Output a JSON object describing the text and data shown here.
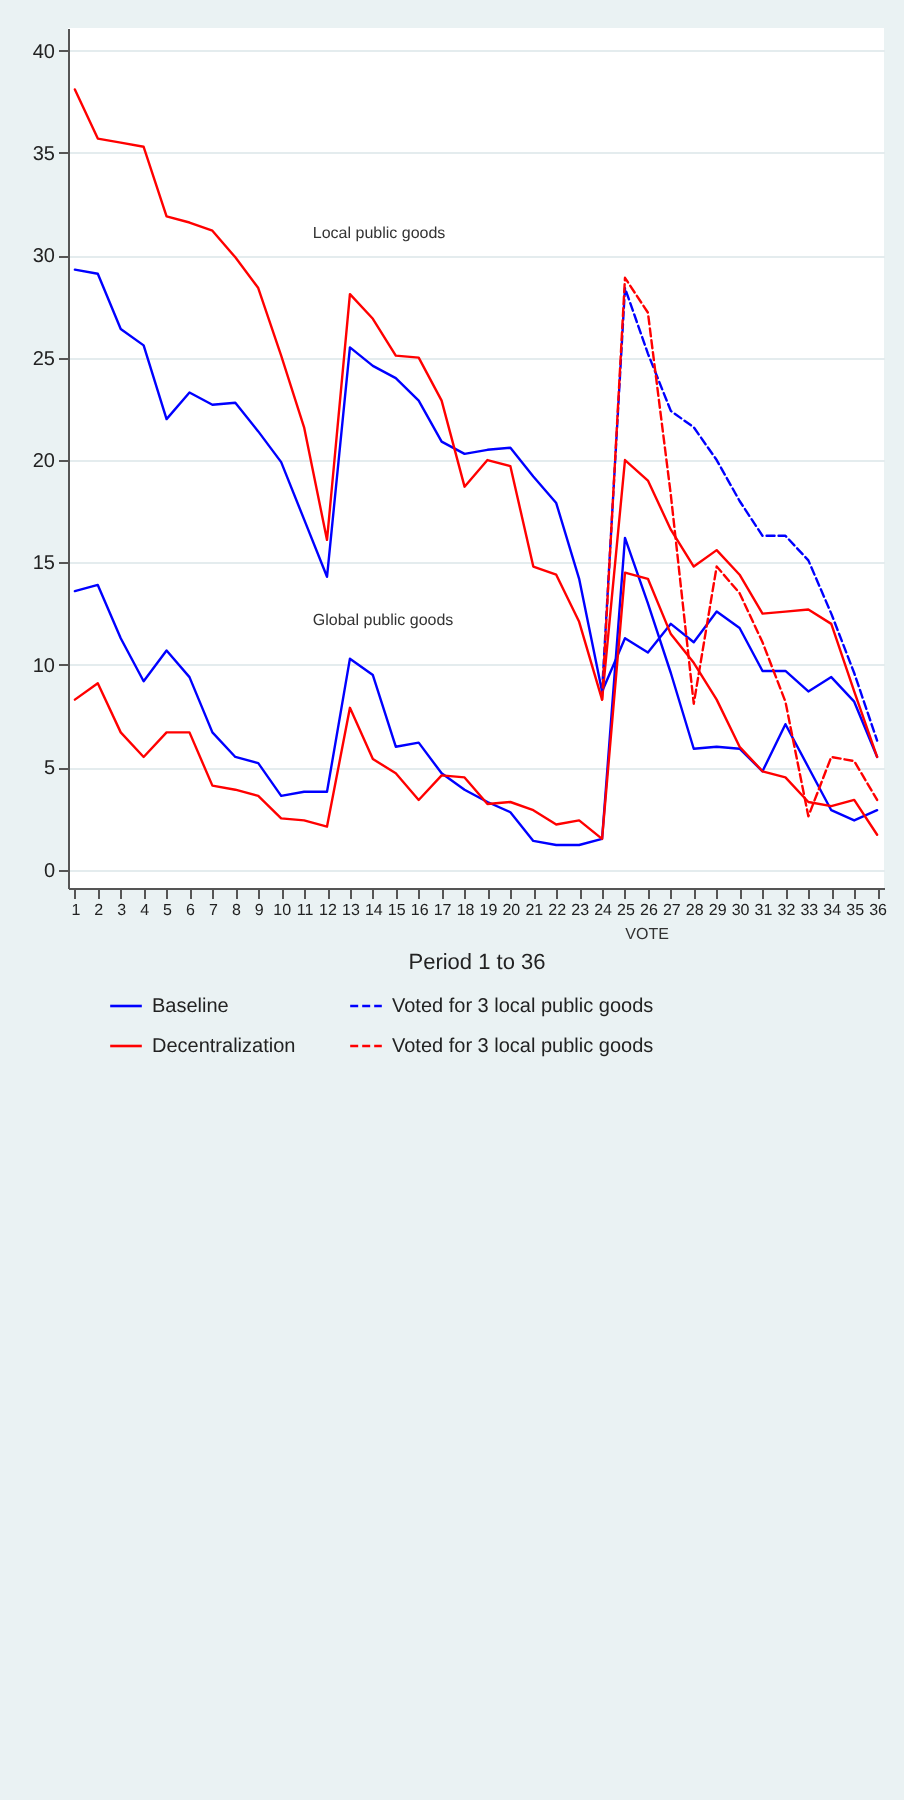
{
  "chart_data": {
    "type": "line",
    "xlabel": "Period 1 to 36",
    "x": [
      1,
      2,
      3,
      4,
      5,
      6,
      7,
      8,
      9,
      10,
      11,
      12,
      13,
      14,
      15,
      16,
      17,
      18,
      19,
      20,
      21,
      22,
      23,
      24,
      25,
      26,
      27,
      28,
      29,
      30,
      31,
      32,
      33,
      34,
      35,
      36
    ],
    "series": [
      {
        "name": "Baseline",
        "color": "#0000ff",
        "line_style": "solid",
        "values": [
          29.3,
          29.1,
          26.4,
          25.6,
          22.0,
          23.3,
          22.7,
          22.8,
          21.4,
          19.9,
          17.1,
          14.3,
          25.5,
          24.6,
          24.0,
          22.9,
          20.9,
          20.3,
          20.5,
          20.6,
          19.2,
          17.9,
          14.2,
          8.7,
          11.3,
          10.6,
          12.0,
          11.1,
          12.6,
          11.8,
          9.7,
          9.7,
          8.7,
          9.4,
          8.2,
          5.5
        ]
      },
      {
        "name": "Decentralization",
        "color": "#ff0000",
        "line_style": "solid",
        "values": [
          38.1,
          35.7,
          35.5,
          35.3,
          31.9,
          31.6,
          31.2,
          29.9,
          28.4,
          25.1,
          21.6,
          16.1,
          28.1,
          26.9,
          25.1,
          25.0,
          22.9,
          18.7,
          20.0,
          19.7,
          14.8,
          14.4,
          12.1,
          8.3,
          20.0,
          19.0,
          16.6,
          14.8,
          15.6,
          14.4,
          12.5,
          12.6,
          12.7,
          12.0,
          8.7,
          5.5
        ]
      },
      {
        "color": "#0000ff",
        "line_style": "solid",
        "values": [
          13.6,
          13.9,
          11.3,
          9.2,
          10.7,
          9.4,
          6.7,
          5.5,
          5.2,
          3.6,
          3.8,
          3.8,
          10.3,
          9.5,
          6.0,
          6.2,
          4.7,
          3.9,
          3.3,
          2.8,
          1.4,
          1.2,
          1.2,
          1.5,
          16.2,
          13.0,
          9.6,
          5.9,
          6.0,
          5.9,
          4.8,
          7.1,
          5.0,
          2.9,
          2.4,
          2.9
        ]
      },
      {
        "color": "#ff0000",
        "line_style": "solid",
        "values": [
          8.3,
          9.1,
          6.7,
          5.5,
          6.7,
          6.7,
          4.1,
          3.9,
          3.6,
          2.5,
          2.4,
          2.1,
          7.9,
          5.4,
          4.7,
          3.4,
          4.6,
          4.5,
          3.2,
          3.3,
          2.9,
          2.2,
          2.4,
          1.5,
          14.5,
          14.2,
          11.5,
          10.1,
          8.3,
          6.0,
          4.8,
          4.5,
          3.3,
          3.1,
          3.4,
          1.7
        ]
      },
      {
        "name": "Voted for 3 local public goods",
        "color": "#0000ff",
        "line_style": "dashed",
        "x": [
          24,
          25,
          26,
          27,
          28,
          29,
          30,
          31,
          32,
          33,
          34,
          35,
          36
        ],
        "values": [
          8.7,
          28.4,
          25.2,
          22.4,
          21.6,
          20.0,
          18.0,
          16.3,
          16.3,
          15.1,
          12.5,
          9.6,
          6.3
        ]
      },
      {
        "name": "Voted for 3 local public goods",
        "color": "#ff0000",
        "line_style": "dashed",
        "x": [
          24,
          25,
          26,
          27,
          28,
          29,
          30,
          31,
          32,
          33,
          34,
          35,
          36
        ],
        "values": [
          8.3,
          28.9,
          27.2,
          18.3,
          8.1,
          14.8,
          13.5,
          11.1,
          8.2,
          2.6,
          5.5,
          5.3,
          3.4
        ]
      }
    ],
    "xlim": [
      0.7,
      36.3
    ],
    "xticks": [
      1,
      2,
      3,
      4,
      5,
      6,
      7,
      8,
      9,
      10,
      11,
      12,
      13,
      14,
      15,
      16,
      17,
      18,
      19,
      20,
      21,
      22,
      23,
      24,
      25,
      26,
      27,
      28,
      29,
      30,
      31,
      32,
      33,
      34,
      35,
      36
    ],
    "ylim": [
      -0.9,
      41.1
    ],
    "yticks": [
      0,
      5,
      10,
      15,
      20,
      25,
      30,
      35,
      40
    ],
    "grid": "y",
    "legend": "bottom",
    "marker": "none",
    "annotations": [
      "Local public goods",
      "Global public goods",
      "VOTE"
    ]
  }
}
